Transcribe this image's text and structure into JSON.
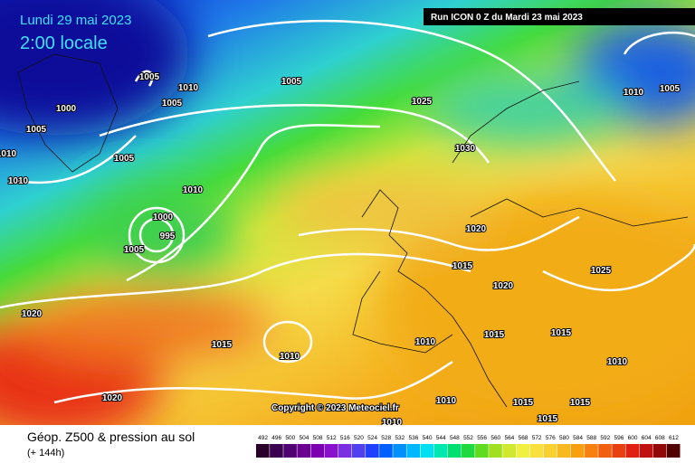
{
  "header": {
    "title": "Lundi 29 mai 2023",
    "time": "2:00 locale",
    "run": "Run ICON 0 Z du Mardi 23 mai 2023"
  },
  "isobar_labels": [
    "1005",
    "1010",
    "1005",
    "1000",
    "1005",
    "1010",
    "1005",
    "1010",
    "1005",
    "1025",
    "1030",
    "1010",
    "1005",
    "1010",
    "1000",
    "995",
    "1005",
    "1020",
    "1015",
    "1025",
    "1020",
    "1020",
    "1015",
    "1010",
    "1010",
    "1015",
    "1015",
    "1010",
    "1020",
    "1010",
    "1015",
    "1015",
    "1015",
    "1010"
  ],
  "copyright": "Copyright © 2023 Meteociel.fr",
  "legend": {
    "title": "Géop. Z500 & pression au sol",
    "subtitle": "(+ 144h)",
    "scale": [
      "492",
      "496",
      "500",
      "504",
      "508",
      "512",
      "516",
      "520",
      "524",
      "528",
      "532",
      "536",
      "540",
      "544",
      "548",
      "552",
      "556",
      "560",
      "564",
      "568",
      "572",
      "576",
      "580",
      "584",
      "588",
      "592",
      "596",
      "600",
      "604",
      "608",
      "612"
    ]
  }
}
